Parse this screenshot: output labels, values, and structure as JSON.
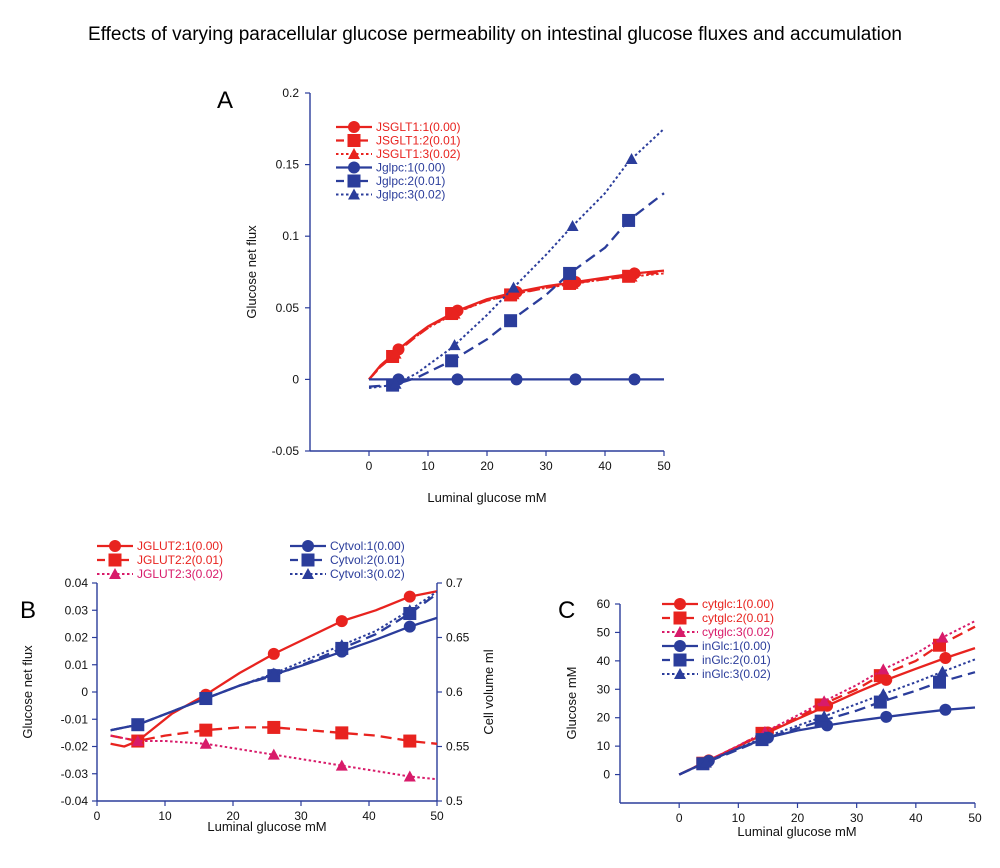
{
  "figure": {
    "title": "Effects of varying paracellular glucose permeability on intestinal glucose fluxes and accumulation"
  },
  "colors": {
    "red": "#e8231f",
    "blue": "#2b3d9b",
    "magenta": "#d81b6a"
  },
  "chart_data": [
    {
      "panel": "A",
      "type": "line",
      "xlabel": "Luminal glucose mM",
      "ylabel": "Glucose net flux",
      "xlim": [
        -10,
        50
      ],
      "ylim": [
        -0.05,
        0.2
      ],
      "xticks": [
        0,
        10,
        20,
        30,
        40,
        50
      ],
      "yticks": [
        -0.05,
        0,
        0.05,
        0.1,
        0.15,
        0.2
      ],
      "ytick_labels": [
        "-0.05",
        "0",
        "0.05",
        "0.1",
        "0.15",
        "0.2"
      ],
      "grid": false,
      "legend_position": "top-left",
      "series": [
        {
          "name": "JSGLT1:1(0.00)",
          "color": "#e8231f",
          "dash": "solid",
          "marker": "circle",
          "x": [
            0,
            2,
            4,
            5,
            8,
            10,
            15,
            20,
            25,
            30,
            35,
            40,
            45,
            50
          ],
          "y": [
            0,
            0.01,
            0.017,
            0.021,
            0.031,
            0.037,
            0.048,
            0.056,
            0.061,
            0.065,
            0.068,
            0.071,
            0.074,
            0.076
          ],
          "markers_x": [
            5,
            15,
            25,
            35,
            45
          ]
        },
        {
          "name": "JSGLT1:2(0.01)",
          "color": "#e8231f",
          "dash": "dashed",
          "marker": "square",
          "x": [
            0,
            2,
            4,
            5,
            8,
            10,
            14,
            20,
            24,
            30,
            34,
            40,
            44,
            50
          ],
          "y": [
            0,
            0.009,
            0.016,
            0.02,
            0.03,
            0.036,
            0.046,
            0.055,
            0.059,
            0.064,
            0.067,
            0.07,
            0.072,
            0.075
          ],
          "markers_x": [
            4,
            14,
            24,
            34,
            44
          ]
        },
        {
          "name": "JSGLT1:3(0.02)",
          "color": "#e8231f",
          "dash": "dotted",
          "marker": "triangle",
          "x": [
            0,
            2,
            4,
            5,
            8,
            10,
            15,
            20,
            25,
            30,
            35,
            40,
            45,
            50
          ],
          "y": [
            0,
            0.009,
            0.016,
            0.02,
            0.03,
            0.036,
            0.047,
            0.055,
            0.06,
            0.064,
            0.067,
            0.07,
            0.072,
            0.074
          ],
          "markers_x": [
            4.5,
            14.5,
            24.5,
            34.5,
            44.5
          ]
        },
        {
          "name": "Jglpc:1(0.00)",
          "color": "#2b3d9b",
          "dash": "solid",
          "marker": "circle",
          "x": [
            0,
            5,
            15,
            25,
            35,
            45,
            50
          ],
          "y": [
            0,
            0,
            0,
            0,
            0,
            0,
            0
          ],
          "markers_x": [
            5,
            15,
            25,
            35,
            45
          ]
        },
        {
          "name": "Jglpc:2(0.01)",
          "color": "#2b3d9b",
          "dash": "dashed",
          "marker": "square",
          "x": [
            0,
            4,
            8,
            14,
            20,
            24,
            30,
            34,
            40,
            44,
            50
          ],
          "y": [
            -0.005,
            -0.004,
            0.001,
            0.013,
            0.028,
            0.041,
            0.059,
            0.074,
            0.092,
            0.111,
            0.13
          ],
          "markers_x": [
            4,
            14,
            24,
            34,
            44
          ]
        },
        {
          "name": "Jglpc:3(0.02)",
          "color": "#2b3d9b",
          "dash": "dotted",
          "marker": "triangle",
          "x": [
            0,
            4,
            8,
            14,
            20,
            24,
            30,
            34,
            40,
            44,
            50
          ],
          "y": [
            -0.006,
            -0.004,
            0.004,
            0.022,
            0.045,
            0.062,
            0.087,
            0.105,
            0.13,
            0.152,
            0.175
          ],
          "markers_x": [
            4.5,
            14.5,
            24.5,
            34.5,
            44.5
          ]
        }
      ]
    },
    {
      "panel": "B",
      "type": "line",
      "xlabel": "Luminal glucose mM",
      "ylabel": "Glucose net flux",
      "y2label": "Cell volume ml",
      "xlim": [
        0,
        50
      ],
      "ylim": [
        -0.04,
        0.04
      ],
      "y2lim": [
        0.5,
        0.7
      ],
      "xticks": [
        0,
        10,
        20,
        30,
        40,
        50
      ],
      "yticks": [
        -0.04,
        -0.03,
        -0.02,
        -0.01,
        0,
        0.01,
        0.02,
        0.03,
        0.04
      ],
      "ytick_labels": [
        "-0.04",
        "-0.03",
        "-0.02",
        "-0.01",
        "0",
        "0.01",
        "0.02",
        "0.03",
        "0.04"
      ],
      "y2ticks": [
        0.5,
        0.55,
        0.6,
        0.65,
        0.7
      ],
      "y2tick_labels": [
        "0.5",
        "0.55",
        "0.6",
        "0.65",
        "0.7"
      ],
      "grid": false,
      "legend_position": "above",
      "series": [
        {
          "name": "JGLUT2:1(0.00)",
          "color": "#e8231f",
          "dash": "solid",
          "marker": "circle",
          "axis": "left",
          "x": [
            2,
            4,
            6,
            8,
            11,
            16,
            21,
            26,
            31,
            36,
            41,
            46,
            50
          ],
          "y": [
            -0.019,
            -0.02,
            -0.018,
            -0.014,
            -0.008,
            -0.001,
            0.007,
            0.014,
            0.02,
            0.026,
            0.03,
            0.035,
            0.037
          ],
          "markers_x": [
            6,
            16,
            26,
            36,
            46
          ]
        },
        {
          "name": "JGLUT2:2(0.01)",
          "color": "#e8231f",
          "dash": "dashed",
          "marker": "square",
          "axis": "left",
          "x": [
            2,
            6,
            10,
            16,
            21,
            26,
            31,
            36,
            41,
            46,
            50
          ],
          "y": [
            -0.016,
            -0.018,
            -0.016,
            -0.014,
            -0.013,
            -0.013,
            -0.014,
            -0.015,
            -0.016,
            -0.018,
            -0.019
          ],
          "markers_x": [
            6,
            16,
            26,
            36,
            46
          ]
        },
        {
          "name": "JGLUT2:3(0.02)",
          "color": "#d81b6a",
          "dash": "dotted",
          "marker": "triangle",
          "axis": "left",
          "x": [
            2,
            6,
            10,
            16,
            21,
            26,
            31,
            36,
            41,
            46,
            50
          ],
          "y": [
            -0.016,
            -0.018,
            -0.018,
            -0.019,
            -0.021,
            -0.023,
            -0.025,
            -0.027,
            -0.029,
            -0.031,
            -0.032
          ],
          "markers_x": [
            6,
            16,
            26,
            36,
            46
          ]
        },
        {
          "name": "Cytvol:1(0.00)",
          "color": "#2b3d9b",
          "dash": "solid",
          "marker": "circle",
          "axis": "right",
          "x": [
            2,
            6,
            11,
            16,
            21,
            26,
            31,
            36,
            41,
            46,
            50
          ],
          "y2": [
            0.565,
            0.57,
            0.582,
            0.594,
            0.606,
            0.616,
            0.626,
            0.637,
            0.648,
            0.66,
            0.668
          ],
          "markers_x": [
            16,
            26,
            36,
            46
          ]
        },
        {
          "name": "Cytvol:2(0.01)",
          "color": "#2b3d9b",
          "dash": "dashed",
          "marker": "square",
          "axis": "right",
          "x": [
            2,
            6,
            11,
            16,
            21,
            26,
            31,
            36,
            41,
            46,
            50
          ],
          "y2": [
            0.565,
            0.57,
            0.582,
            0.594,
            0.606,
            0.615,
            0.627,
            0.64,
            0.653,
            0.672,
            0.69
          ],
          "markers_x": [
            6,
            16,
            26,
            36,
            46
          ]
        },
        {
          "name": "Cytvol:3(0.02)",
          "color": "#2b3d9b",
          "dash": "dotted",
          "marker": "triangle",
          "axis": "right",
          "x": [
            2,
            6,
            11,
            16,
            21,
            26,
            31,
            36,
            41,
            46,
            50
          ],
          "y2": [
            0.565,
            0.57,
            0.582,
            0.594,
            0.606,
            0.617,
            0.63,
            0.643,
            0.656,
            0.675,
            0.692
          ],
          "markers_x": [
            6,
            16,
            26,
            36,
            46
          ]
        }
      ]
    },
    {
      "panel": "C",
      "type": "line",
      "xlabel": "Luminal glucose mM",
      "ylabel": "Glucose mM",
      "xlim": [
        -10,
        50
      ],
      "ylim": [
        -10,
        60
      ],
      "xticks": [
        0,
        10,
        20,
        30,
        40,
        50
      ],
      "yticks": [
        0,
        10,
        20,
        30,
        40,
        50,
        60
      ],
      "ytick_labels": [
        "0",
        "10",
        "20",
        "30",
        "40",
        "50",
        "60"
      ],
      "grid": false,
      "legend_position": "top-left",
      "series": [
        {
          "name": "cytglc:1(0.00)",
          "color": "#e8231f",
          "dash": "solid",
          "marker": "circle",
          "x": [
            0,
            5,
            10,
            15,
            20,
            25,
            30,
            35,
            40,
            45,
            50
          ],
          "y": [
            0,
            5,
            10,
            14.8,
            19.6,
            24.2,
            28.9,
            33.3,
            37.2,
            41,
            44.5
          ],
          "markers_x": [
            5,
            15,
            25,
            35,
            45
          ]
        },
        {
          "name": "cytglc:2(0.01)",
          "color": "#e8231f",
          "dash": "dashed",
          "marker": "square",
          "x": [
            0,
            4,
            10,
            14,
            20,
            24,
            30,
            34,
            40,
            44,
            50
          ],
          "y": [
            0,
            4,
            10,
            14.5,
            20,
            24.5,
            30,
            34.8,
            40,
            45.5,
            52
          ],
          "markers_x": [
            4,
            14,
            24,
            34,
            44
          ]
        },
        {
          "name": "cytglc:3(0.02)",
          "color": "#d81b6a",
          "dash": "dotted",
          "marker": "triangle",
          "x": [
            0,
            4.5,
            10,
            14.5,
            20,
            24.5,
            30,
            34.5,
            40,
            44.5,
            50
          ],
          "y": [
            0,
            4.5,
            10.2,
            15,
            20.8,
            25.8,
            31.5,
            37,
            42.5,
            48.2,
            54
          ],
          "markers_x": [
            4.5,
            14.5,
            24.5,
            34.5,
            44.5
          ]
        },
        {
          "name": "inGlc:1(0.00)",
          "color": "#2b3d9b",
          "dash": "solid",
          "marker": "circle",
          "x": [
            0,
            5,
            10,
            15,
            20,
            25,
            30,
            35,
            40,
            45,
            50
          ],
          "y": [
            0,
            4.8,
            9.2,
            13,
            15.5,
            17.3,
            18.9,
            20.3,
            21.6,
            22.8,
            23.6
          ],
          "markers_x": [
            5,
            15,
            25,
            35,
            45
          ]
        },
        {
          "name": "inGlc:2(0.01)",
          "color": "#2b3d9b",
          "dash": "dashed",
          "marker": "square",
          "x": [
            0,
            4,
            10,
            14,
            20,
            24,
            30,
            34,
            40,
            44,
            50
          ],
          "y": [
            0,
            3.8,
            8.8,
            12.3,
            16.3,
            18.8,
            22.5,
            25.5,
            29.5,
            32.5,
            36
          ],
          "markers_x": [
            4,
            14,
            24,
            34,
            44
          ]
        },
        {
          "name": "inGlc:3(0.02)",
          "color": "#2b3d9b",
          "dash": "dotted",
          "marker": "triangle",
          "x": [
            0,
            4.5,
            10,
            14.5,
            20,
            24.5,
            30,
            34.5,
            40,
            44.5,
            50
          ],
          "y": [
            0,
            4.2,
            9.3,
            13.2,
            17.2,
            20.5,
            24.8,
            28.3,
            32.5,
            36.2,
            40.5
          ],
          "markers_x": [
            4.5,
            14.5,
            24.5,
            34.5,
            44.5
          ]
        }
      ]
    }
  ]
}
